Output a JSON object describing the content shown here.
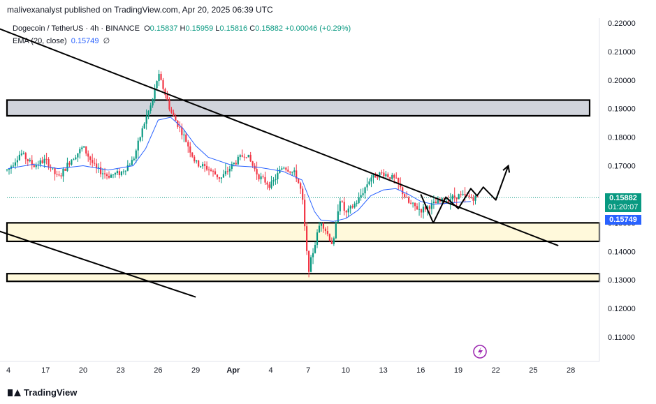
{
  "header": {
    "publisher_line": "malivexanalyst published on TradingView.com, Apr 20, 2025 06:39 UTC"
  },
  "legend": {
    "symbol": "Dogecoin / TetherUS · 4h · BINANCE",
    "open_label": "O",
    "open": "0.15837",
    "high_label": "H",
    "high": "0.15959",
    "low_label": "L",
    "low": "0.15816",
    "close_label": "C",
    "close": "0.15882",
    "change": "+0.00046 (+0.29%)",
    "ema_label": "EMA (20, close)",
    "ema_value": "0.15749",
    "ema_zero": "∅"
  },
  "price_tags": {
    "last_price": "0.15882",
    "countdown": "01:20:07",
    "ema_price": "0.15749"
  },
  "footer": {
    "brand": "TradingView"
  },
  "colors": {
    "up": "#089981",
    "down": "#f23645",
    "ema": "#2962ff",
    "resistance_zone": "#d1d4dc",
    "support_zone": "#fff9db",
    "line": "#000000"
  },
  "chart_data": {
    "type": "candlestick",
    "series": [
      {
        "name": "Dogecoin / TetherUS · 4h · BINANCE"
      }
    ],
    "x_ticks": [
      "4",
      "17",
      "20",
      "23",
      "26",
      "29",
      "Apr",
      "4",
      "7",
      "10",
      "13",
      "16",
      "19",
      "22",
      "25",
      "28"
    ],
    "y_ticks": [
      "0.22000",
      "0.21000",
      "0.20000",
      "0.19000",
      "0.18000",
      "0.17000",
      "0.16000",
      "0.15000",
      "0.14000",
      "0.13000",
      "0.12000",
      "0.11000"
    ],
    "ylim": [
      0.103,
      0.225
    ],
    "price_path": [
      {
        "d": "Mar 14",
        "p": 0.1685
      },
      {
        "d": "Mar 15",
        "p": 0.1745
      },
      {
        "d": "Mar 16",
        "p": 0.17
      },
      {
        "d": "Mar 17",
        "p": 0.172
      },
      {
        "d": "Mar 18",
        "p": 0.1655
      },
      {
        "d": "Mar 19",
        "p": 0.172
      },
      {
        "d": "Mar 20",
        "p": 0.1765
      },
      {
        "d": "Mar 21",
        "p": 0.169
      },
      {
        "d": "Mar 22",
        "p": 0.1665
      },
      {
        "d": "Mar 23",
        "p": 0.1675
      },
      {
        "d": "Mar 24",
        "p": 0.172
      },
      {
        "d": "Mar 25",
        "p": 0.1865
      },
      {
        "d": "Mar 25.5",
        "p": 0.192
      },
      {
        "d": "Mar 26",
        "p": 0.202
      },
      {
        "d": "Mar 26.5",
        "p": 0.196
      },
      {
        "d": "Mar 27",
        "p": 0.189
      },
      {
        "d": "Mar 28",
        "p": 0.181
      },
      {
        "d": "Mar 29",
        "p": 0.171
      },
      {
        "d": "Mar 30",
        "p": 0.169
      },
      {
        "d": "Mar 31",
        "p": 0.1655
      },
      {
        "d": "Apr 1",
        "p": 0.1705
      },
      {
        "d": "Apr 2",
        "p": 0.1745
      },
      {
        "d": "Apr 3",
        "p": 0.1665
      },
      {
        "d": "Apr 4",
        "p": 0.163
      },
      {
        "d": "Apr 5",
        "p": 0.17
      },
      {
        "d": "Apr 6",
        "p": 0.167
      },
      {
        "d": "Apr 6.5",
        "p": 0.16
      },
      {
        "d": "Apr 7",
        "p": 0.133
      },
      {
        "d": "Apr 7.5",
        "p": 0.142
      },
      {
        "d": "Apr 8",
        "p": 0.151
      },
      {
        "d": "Apr 9",
        "p": 0.142
      },
      {
        "d": "Apr 9.5",
        "p": 0.159
      },
      {
        "d": "Apr 10",
        "p": 0.153
      },
      {
        "d": "Apr 11",
        "p": 0.158
      },
      {
        "d": "Apr 12",
        "p": 0.166
      },
      {
        "d": "Apr 13",
        "p": 0.1675
      },
      {
        "d": "Apr 14",
        "p": 0.165
      },
      {
        "d": "Apr 15",
        "p": 0.157
      },
      {
        "d": "Apr 16",
        "p": 0.1545
      },
      {
        "d": "Apr 17",
        "p": 0.1565
      },
      {
        "d": "Apr 18",
        "p": 0.158
      },
      {
        "d": "Apr 19",
        "p": 0.1595
      },
      {
        "d": "Apr 20",
        "p": 0.1588
      }
    ],
    "ema_path": [
      {
        "d": "Mar 14",
        "p": 0.169
      },
      {
        "d": "Mar 16",
        "p": 0.1705
      },
      {
        "d": "Mar 18",
        "p": 0.169
      },
      {
        "d": "Mar 20",
        "p": 0.17
      },
      {
        "d": "Mar 22",
        "p": 0.1685
      },
      {
        "d": "Mar 24",
        "p": 0.17
      },
      {
        "d": "Mar 25",
        "p": 0.176
      },
      {
        "d": "Mar 26",
        "p": 0.186
      },
      {
        "d": "Mar 27",
        "p": 0.187
      },
      {
        "d": "Mar 28",
        "p": 0.183
      },
      {
        "d": "Mar 29",
        "p": 0.177
      },
      {
        "d": "Mar 30",
        "p": 0.173
      },
      {
        "d": "Apr 1",
        "p": 0.17
      },
      {
        "d": "Apr 3",
        "p": 0.1695
      },
      {
        "d": "Apr 5",
        "p": 0.168
      },
      {
        "d": "Apr 6.5",
        "p": 0.165
      },
      {
        "d": "Apr 7.5",
        "p": 0.154
      },
      {
        "d": "Apr 8",
        "p": 0.151
      },
      {
        "d": "Apr 9",
        "p": 0.1505
      },
      {
        "d": "Apr 10",
        "p": 0.1515
      },
      {
        "d": "Apr 11",
        "p": 0.1545
      },
      {
        "d": "Apr 12",
        "p": 0.1595
      },
      {
        "d": "Apr 13",
        "p": 0.1615
      },
      {
        "d": "Apr 14",
        "p": 0.162
      },
      {
        "d": "Apr 15",
        "p": 0.16
      },
      {
        "d": "Apr 16",
        "p": 0.1575
      },
      {
        "d": "Apr 17",
        "p": 0.1565
      },
      {
        "d": "Apr 18",
        "p": 0.1568
      },
      {
        "d": "Apr 19",
        "p": 0.1572
      },
      {
        "d": "Apr 20",
        "p": 0.1575
      }
    ],
    "zones": [
      {
        "name": "resistance",
        "from": 0.1875,
        "to": 0.193
      },
      {
        "name": "support",
        "from": 0.1435,
        "to": 0.15
      },
      {
        "name": "support-low",
        "from": 0.1295,
        "to": 0.1322
      }
    ],
    "trendlines": [
      {
        "name": "descending-resistance",
        "from": {
          "d": "Mar 13",
          "p": 0.2185
        },
        "to": {
          "d": "Apr 27",
          "p": 0.142
        }
      },
      {
        "name": "lower-channel",
        "from": {
          "d": "Mar 13",
          "p": 0.1475
        },
        "to": {
          "d": "Mar 29",
          "p": 0.124
        }
      }
    ],
    "projection": [
      {
        "d": "Apr 16",
        "p": 0.16
      },
      {
        "d": "Apr 17",
        "p": 0.15
      },
      {
        "d": "Apr 18",
        "p": 0.159
      },
      {
        "d": "Apr 19",
        "p": 0.155
      },
      {
        "d": "Apr 20",
        "p": 0.162
      },
      {
        "d": "Apr 20.5",
        "p": 0.1595
      },
      {
        "d": "Apr 21",
        "p": 0.1625
      },
      {
        "d": "Apr 22",
        "p": 0.158
      },
      {
        "d": "Apr 23",
        "p": 0.17
      }
    ],
    "last_price": 0.15882,
    "ema_last": 0.15749
  }
}
